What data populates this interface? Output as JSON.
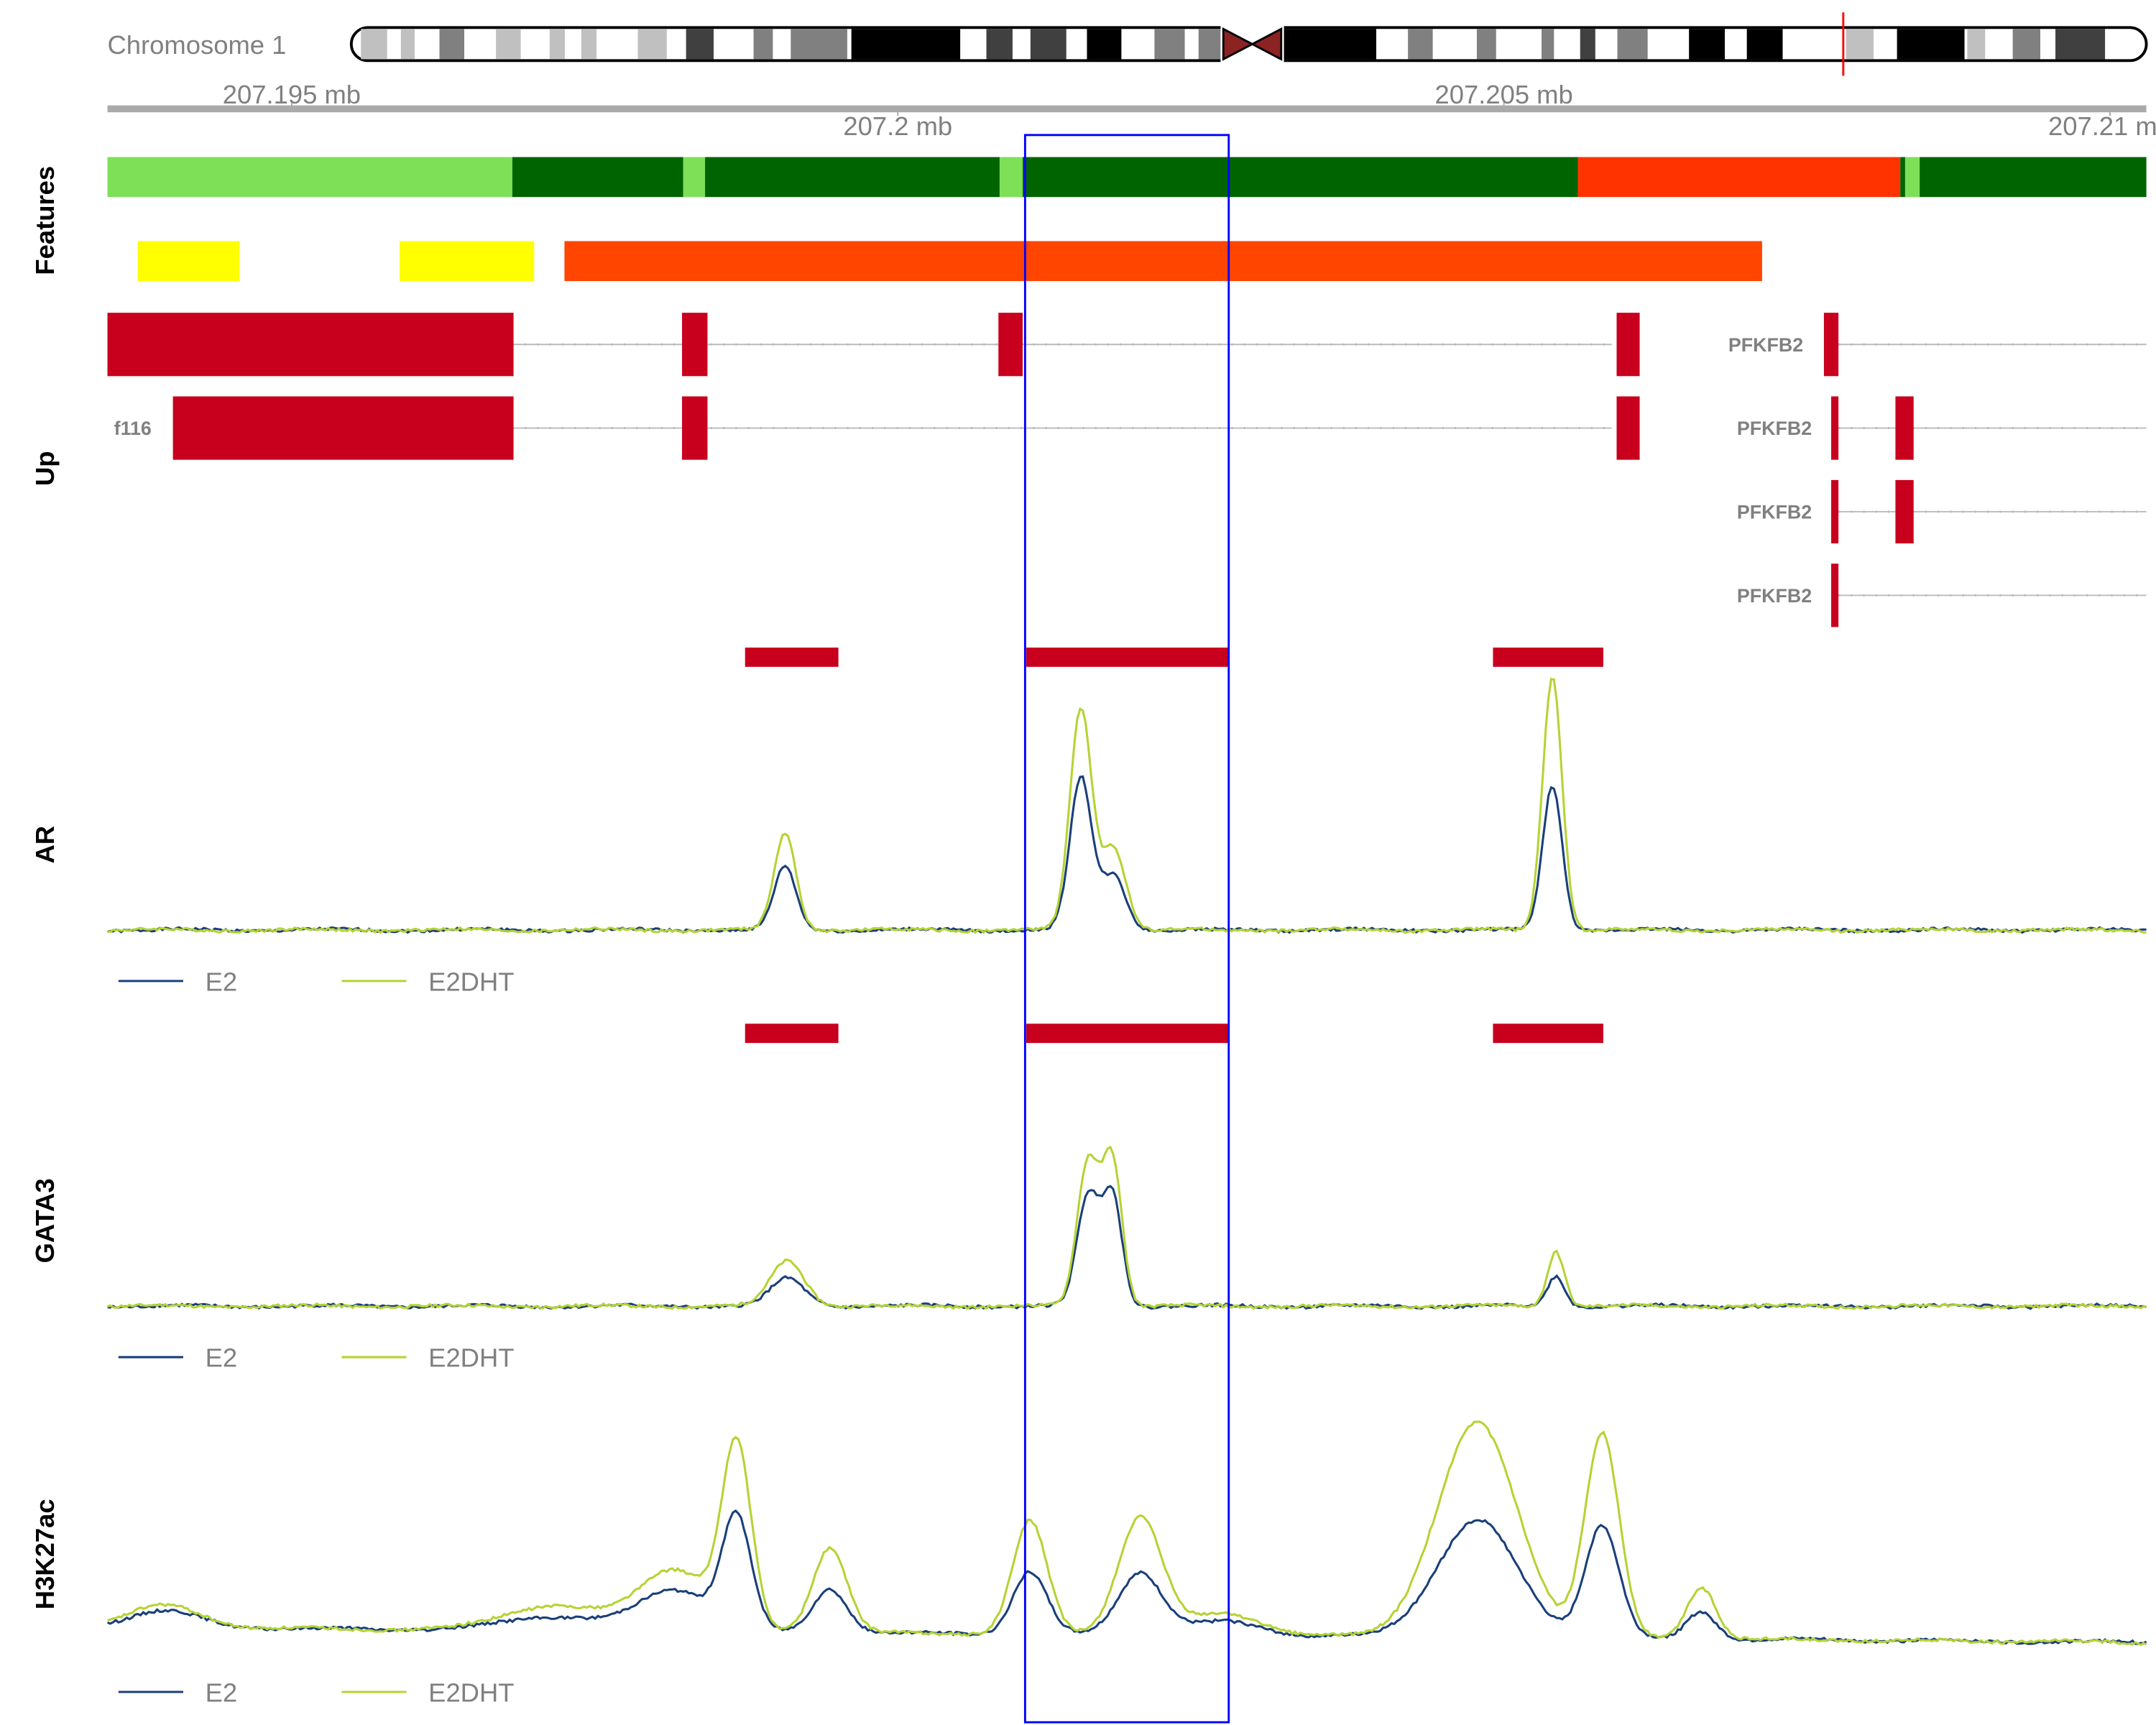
{
  "ideogram": {
    "label": "Chromosome 1",
    "highlight_color": "#ff0000",
    "centromere_color": "#8b2323"
  },
  "axis": {
    "ticks": [
      {
        "value": 207.195,
        "label": "207.195 mb"
      },
      {
        "value": 207.2,
        "label": "207.2 mb"
      },
      {
        "value": 207.205,
        "label": "207.205 mb"
      },
      {
        "value": 207.21,
        "label": "207.21 mb"
      }
    ]
  },
  "range_mb": [
    207.19348,
    207.2103
  ],
  "highlight": {
    "start_mb": 207.20105,
    "end_mb": 207.20273,
    "color": "#0000ff"
  },
  "tracks": {
    "features": {
      "title": "Features",
      "row1": [
        {
          "s": 207.19348,
          "e": 207.19682,
          "c": "#7de057"
        },
        {
          "s": 207.19682,
          "e": 207.19823,
          "c": "#006400"
        },
        {
          "s": 207.19823,
          "e": 207.19841,
          "c": "#7de057"
        },
        {
          "s": 207.19841,
          "e": 207.20084,
          "c": "#006400"
        },
        {
          "s": 207.20084,
          "e": 207.20103,
          "c": "#7de057"
        },
        {
          "s": 207.20103,
          "e": 207.20561,
          "c": "#006400"
        },
        {
          "s": 207.20561,
          "e": 207.20827,
          "c": "#ff3300"
        },
        {
          "s": 207.20827,
          "e": 207.20831,
          "c": "#006400"
        },
        {
          "s": 207.20831,
          "e": 207.20843,
          "c": "#7de057"
        },
        {
          "s": 207.20843,
          "e": 207.2103,
          "c": "#006400"
        }
      ],
      "row2": [
        {
          "s": 207.19373,
          "e": 207.19457,
          "c": "#ffff00"
        },
        {
          "s": 207.19589,
          "e": 207.197,
          "c": "#ffff00"
        },
        {
          "s": 207.19725,
          "e": 207.20713,
          "c": "#ff4500"
        }
      ]
    },
    "genes": {
      "title": "Up",
      "color": "#c8001e",
      "rows": [
        {
          "left_label": "",
          "line": [
            207.19682,
            207.20589
          ],
          "exons": [
            [
              207.19348,
              207.19683
            ],
            [
              207.19822,
              207.19843
            ],
            [
              207.20083,
              207.20103
            ],
            [
              207.20593,
              207.20612
            ]
          ],
          "right_label": "PFKFB2",
          "right_line": [
            207.20776,
            207.2103
          ],
          "right_exons": [
            [
              207.20764,
              207.20776
            ]
          ]
        },
        {
          "left_label": "f116",
          "line": [
            207.19682,
            207.20589
          ],
          "exons": [
            [
              207.19402,
              207.19683
            ],
            [
              207.19822,
              207.19843
            ],
            [
              207.20593,
              207.20612
            ]
          ],
          "right_label": "PFKFB2",
          "right_line": [
            207.20776,
            207.2103
          ],
          "right_exons": [
            [
              207.2077,
              207.20776
            ],
            [
              207.20823,
              207.20838
            ]
          ]
        },
        {
          "left_label": "",
          "line": null,
          "exons": [],
          "right_label": "PFKFB2",
          "right_line": [
            207.20776,
            207.2103
          ],
          "right_exons": [
            [
              207.2077,
              207.20776
            ],
            [
              207.20823,
              207.20838
            ]
          ]
        },
        {
          "left_label": "",
          "line": null,
          "exons": [],
          "right_label": "PFKFB2",
          "right_line": [
            207.20776,
            207.2103
          ],
          "right_exons": [
            [
              207.2077,
              207.20776
            ]
          ]
        }
      ]
    }
  },
  "chart_data": [
    {
      "type": "line",
      "title": "AR",
      "ylim": [
        0,
        190
      ],
      "peak_calls": [
        [
          207.19874,
          207.19951
        ],
        [
          207.20106,
          207.20273
        ],
        [
          207.20491,
          207.20582
        ]
      ],
      "series": [
        {
          "name": "E2",
          "color": "#1a3f7a",
          "baseline": [
            1,
            1
          ],
          "peaks": [
            [
              207.19907,
              46,
              9e-05
            ],
            [
              207.20151,
              110,
              9e-05
            ],
            [
              207.20178,
              40,
              0.0001
            ],
            [
              207.2054,
              105,
              8e-05
            ]
          ]
        },
        {
          "name": "E2DHT",
          "color": "#b5d334",
          "baseline": [
            1,
            1
          ],
          "peaks": [
            [
              207.19907,
              70,
              9e-05
            ],
            [
              207.20151,
              160,
              9e-05
            ],
            [
              207.20178,
              60,
              0.0001
            ],
            [
              207.2054,
              184,
              8e-05
            ]
          ]
        }
      ],
      "legend": [
        "E2",
        "E2DHT"
      ]
    },
    {
      "type": "line",
      "title": "GATA3",
      "ylim": [
        0,
        190
      ],
      "peak_calls": [
        [
          207.19874,
          207.19951
        ],
        [
          207.20106,
          207.20273
        ],
        [
          207.20491,
          207.20582
        ]
      ],
      "series": [
        {
          "name": "E2",
          "color": "#1a3f7a",
          "baseline": [
            1,
            1
          ],
          "peaks": [
            [
              207.19909,
              20,
              0.00014
            ],
            [
              207.20157,
              80,
              9e-05
            ],
            [
              207.20177,
              80,
              8e-05
            ],
            [
              207.20543,
              22,
              7e-05
            ]
          ]
        },
        {
          "name": "E2DHT",
          "color": "#b5d334",
          "baseline": [
            1,
            1
          ],
          "peaks": [
            [
              207.19909,
              33,
              0.00014
            ],
            [
              207.20157,
              105,
              9e-05
            ],
            [
              207.20177,
              105,
              8e-05
            ],
            [
              207.20543,
              40,
              7e-05
            ]
          ]
        }
      ],
      "legend": [
        "E2",
        "E2DHT"
      ]
    },
    {
      "type": "line",
      "title": "H3K27ac",
      "ylim": [
        0,
        190
      ],
      "peak_calls": [],
      "series": [
        {
          "name": "E2",
          "color": "#1a3f7a",
          "baseline": [
            5,
            -6
          ],
          "peaks": [
            [
              207.19395,
              12,
              0.0003
            ],
            [
              207.19715,
              10,
              0.0004
            ],
            [
              207.19816,
              30,
              0.0003
            ],
            [
              207.19867,
              80,
              0.00012
            ],
            [
              207.19944,
              32,
              0.00014
            ],
            [
              207.20109,
              45,
              0.00014
            ],
            [
              207.202,
              45,
              0.00018
            ],
            [
              207.2027,
              10,
              0.0003
            ],
            [
              207.20478,
              85,
              0.00033
            ],
            [
              207.20581,
              82,
              0.00014
            ],
            [
              207.20663,
              20,
              0.00012
            ]
          ]
        },
        {
          "name": "E2DHT",
          "color": "#b5d334",
          "baseline": [
            5,
            -6
          ],
          "peaks": [
            [
              207.19395,
              16,
              0.0003
            ],
            [
              207.19715,
              18,
              0.0004
            ],
            [
              207.19816,
              45,
              0.0003
            ],
            [
              207.19867,
              130,
              0.00012
            ],
            [
              207.19944,
              62,
              0.00014
            ],
            [
              207.20109,
              82,
              0.00014
            ],
            [
              207.202,
              85,
              0.00018
            ],
            [
              207.2027,
              16,
              0.0003
            ],
            [
              207.20478,
              155,
              0.00033
            ],
            [
              207.20581,
              148,
              0.00014
            ],
            [
              207.20663,
              38,
              0.00012
            ]
          ]
        }
      ],
      "legend": [
        "E2",
        "E2DHT"
      ]
    }
  ]
}
